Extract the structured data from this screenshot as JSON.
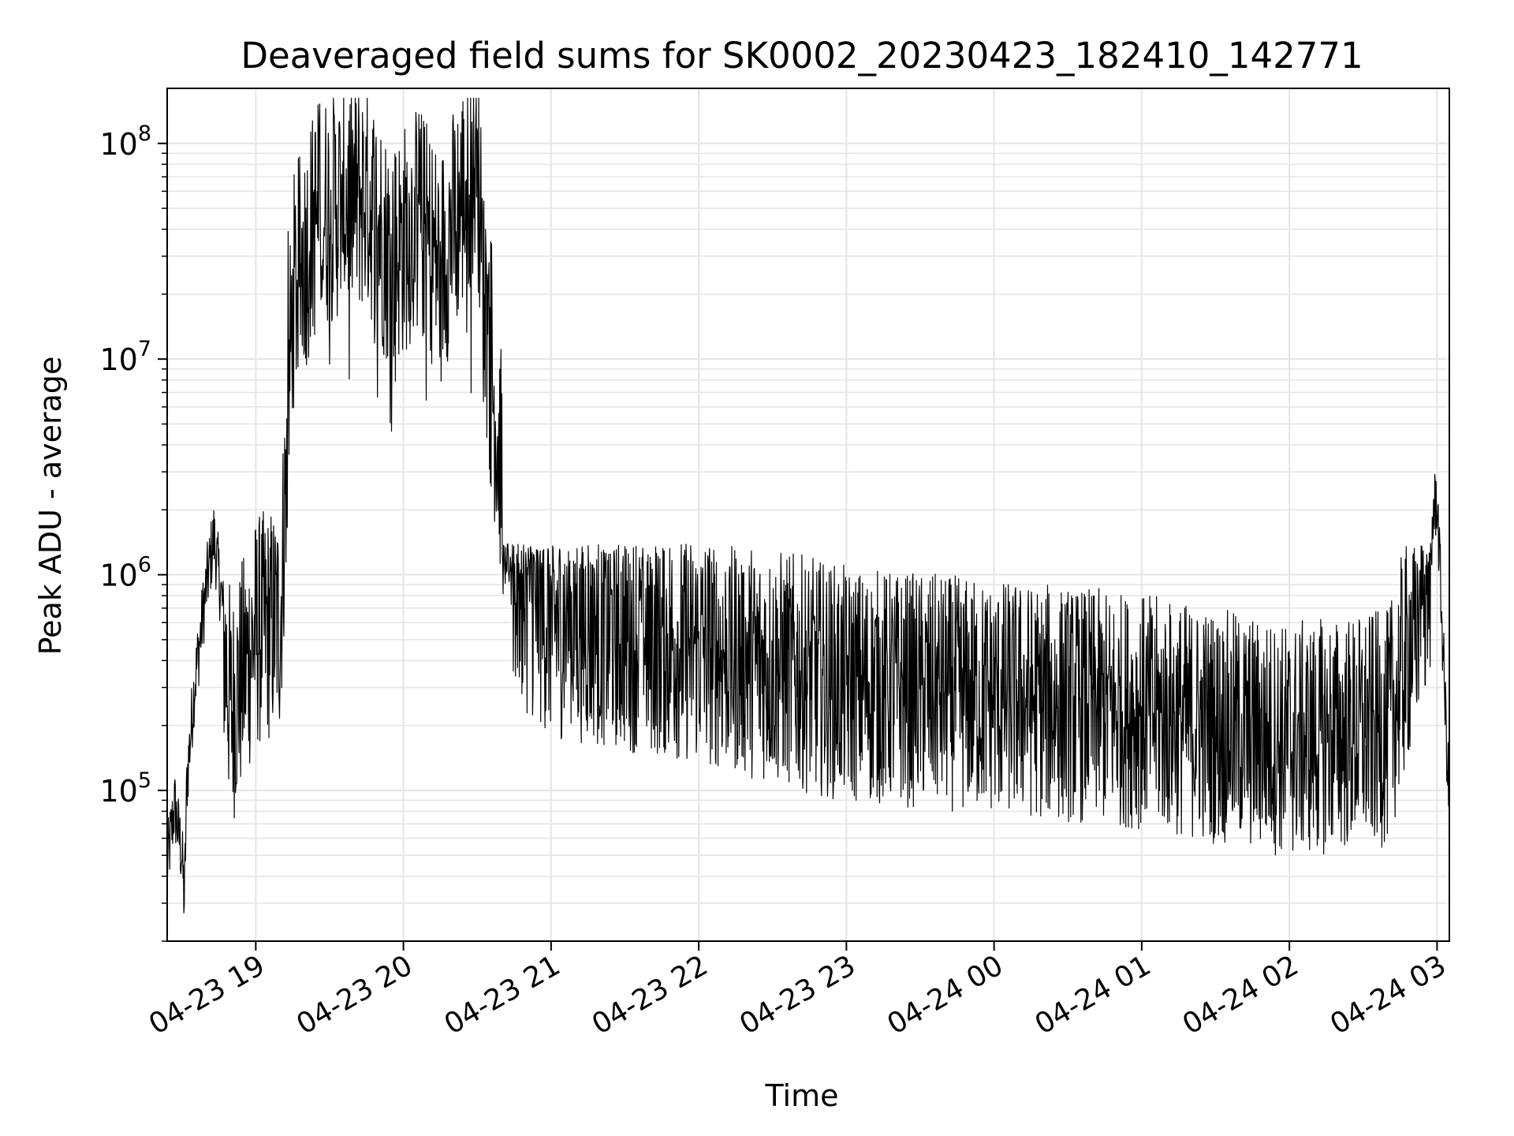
{
  "chart_data": {
    "type": "line",
    "title": "Deaveraged field sums for SK0002_20230423_182410_142771",
    "xlabel": "Time",
    "ylabel": "Peak ADU - average",
    "y_scale": "log",
    "ylim": [
      20000,
      180000000
    ],
    "xlim": [
      "2023-04-23 18:24",
      "2023-04-24 03:05"
    ],
    "grid": true,
    "line_color": "#000000",
    "grid_color": "#e5e5e5",
    "x_ticks": [
      {
        "label": "04-23 19",
        "time": "2023-04-23 19:00"
      },
      {
        "label": "04-23 20",
        "time": "2023-04-23 20:00"
      },
      {
        "label": "04-23 21",
        "time": "2023-04-23 21:00"
      },
      {
        "label": "04-23 22",
        "time": "2023-04-23 22:00"
      },
      {
        "label": "04-23 23",
        "time": "2023-04-23 23:00"
      },
      {
        "label": "04-24 00",
        "time": "2023-04-24 00:00"
      },
      {
        "label": "04-24 01",
        "time": "2023-04-24 01:00"
      },
      {
        "label": "04-24 02",
        "time": "2023-04-24 02:00"
      },
      {
        "label": "04-24 03",
        "time": "2023-04-24 03:00"
      }
    ],
    "y_ticks": [
      {
        "value": 100000,
        "base": "10",
        "exp": "5"
      },
      {
        "value": 1000000,
        "base": "10",
        "exp": "6"
      },
      {
        "value": 10000000,
        "base": "10",
        "exp": "7"
      },
      {
        "value": 100000000,
        "base": "10",
        "exp": "8"
      }
    ],
    "series": [
      {
        "points": [
          [
            "2023-04-23 18:24",
            45000
          ],
          [
            "2023-04-23 18:27",
            85000
          ],
          [
            "2023-04-23 18:30",
            50000
          ],
          [
            "2023-04-23 18:31",
            30000
          ],
          [
            "2023-04-23 18:32",
            110000
          ],
          [
            "2023-04-23 18:35",
            300000
          ],
          [
            "2023-04-23 18:40",
            900000
          ],
          [
            "2023-04-23 18:43",
            1500000
          ],
          [
            "2023-04-23 18:46",
            800000
          ],
          [
            "2023-04-23 18:50",
            300000
          ],
          [
            "2023-04-23 19:00",
            700000
          ],
          [
            "2023-04-23 19:10",
            800000
          ],
          [
            "2023-04-23 19:15",
            26000000
          ],
          [
            "2023-04-23 19:25",
            60000000
          ],
          [
            "2023-04-23 19:35",
            70000000
          ],
          [
            "2023-04-23 19:45",
            75000000
          ],
          [
            "2023-04-23 19:55",
            38000000
          ],
          [
            "2023-04-23 20:06",
            58000000
          ],
          [
            "2023-04-23 20:15",
            35000000
          ],
          [
            "2023-04-23 20:30",
            118000000
          ],
          [
            "2023-04-23 20:33",
            20000000
          ],
          [
            "2023-04-23 20:45",
            1200000
          ],
          [
            "2023-04-23 21:00",
            800000
          ],
          [
            "2023-04-23 22:00",
            600000
          ],
          [
            "2023-04-23 23:00",
            400000
          ],
          [
            "2023-04-24 00:00",
            350000
          ],
          [
            "2023-04-24 01:00",
            300000
          ],
          [
            "2023-04-24 02:00",
            220000
          ],
          [
            "2023-04-24 02:40",
            250000
          ],
          [
            "2023-04-24 02:55",
            1200000
          ],
          [
            "2023-04-24 03:00",
            2300000
          ],
          [
            "2023-04-24 03:05",
            80000
          ]
        ]
      }
    ]
  }
}
